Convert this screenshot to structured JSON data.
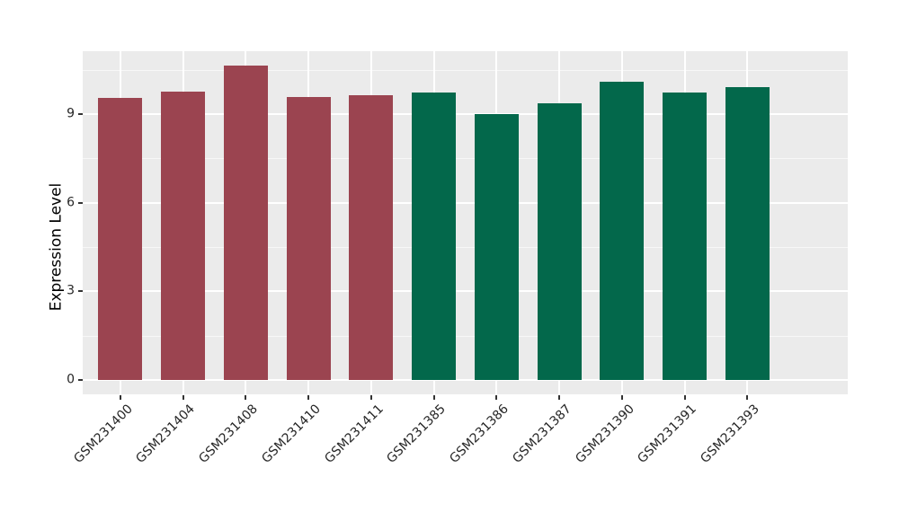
{
  "page": {
    "background": "#FFFFFF"
  },
  "chart_data": {
    "type": "bar",
    "title": "",
    "xlabel": "",
    "ylabel": "Expression Level",
    "categories": [
      "GSM231400",
      "GSM231404",
      "GSM231408",
      "GSM231410",
      "GSM231411",
      "GSM231385",
      "GSM231386",
      "GSM231387",
      "GSM231390",
      "GSM231391",
      "GSM231393"
    ],
    "values": [
      9.54,
      9.76,
      10.64,
      9.58,
      9.64,
      9.74,
      9.0,
      9.37,
      10.1,
      9.74,
      9.92
    ],
    "groups": [
      "A",
      "A",
      "A",
      "A",
      "A",
      "B",
      "B",
      "B",
      "B",
      "B",
      "B"
    ],
    "group_colors": {
      "A": "#9B4450",
      "B": "#03684B"
    },
    "yticks": [
      0,
      3,
      6,
      9
    ],
    "ytick_labels": [
      "0",
      "3",
      "6",
      "9"
    ],
    "minor_yticks": [
      1.5,
      4.5,
      7.5,
      10.5
    ],
    "ylim": [
      0,
      11.1
    ],
    "x_tick_rotation_deg": 45,
    "legend": "none",
    "grid": "white major and minor gridlines on gray panel"
  },
  "style": {
    "panel_bg": "#EBEBEB",
    "grid_color": "#FFFFFF",
    "tick_mark_color": "#333333",
    "tick_label_color": "#262626",
    "axis_title_color": "#000000"
  }
}
